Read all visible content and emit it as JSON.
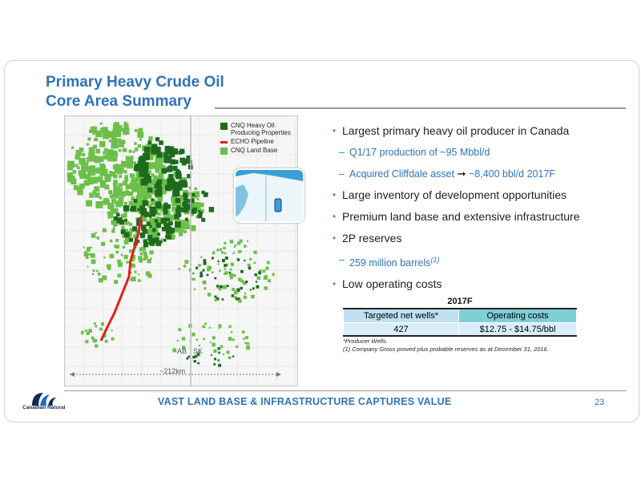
{
  "title": {
    "line1": "Primary Heavy Crude Oil",
    "line2": "Core Area Summary"
  },
  "map": {
    "legend": [
      {
        "label": "CNQ Heavy Oil Producing Properties",
        "color": "#1e6b1e"
      },
      {
        "label": "ECHO Pipeline",
        "color": "#e0201b"
      },
      {
        "label": "CNQ Land Base",
        "color": "#6cc04a"
      }
    ],
    "province_left": "AB",
    "province_right": "SK",
    "scale_label": "~212km"
  },
  "bullets": [
    {
      "level": 1,
      "text": "Largest primary heavy oil producer in Canada"
    },
    {
      "level": 2,
      "text": "Q1/17 production of ~95 Mbbl/d"
    },
    {
      "level": 2,
      "text": "Acquired Cliffdale asset",
      "arrow_target": "~8,400 bbl/d 2017F"
    },
    {
      "level": 1,
      "text": "Large inventory of development opportunities"
    },
    {
      "level": 1,
      "text": "Premium land base and extensive infrastructure"
    },
    {
      "level": 1,
      "text": "2P reserves"
    },
    {
      "level": 2,
      "text": "259 million barrels",
      "superscript": "(1)"
    },
    {
      "level": 1,
      "text": "Low operating costs"
    }
  ],
  "table": {
    "title": "2017F",
    "headers": [
      "Targeted net wells*",
      "Operating costs"
    ],
    "rows": [
      [
        "427",
        "$12.75 - $14.75/bbl"
      ]
    ],
    "colors": {
      "header_left": "#bfe0f2",
      "header_right": "#7fcfd6",
      "row": "#d9eef8"
    }
  },
  "notes": [
    "*Producer Wells.",
    "(1) Company Gross proved plus probable reserves as at December 31, 2016."
  ],
  "footer": "VAST LAND BASE & INFRASTRUCTURE CAPTURES VALUE",
  "page_number": "23",
  "logo": {
    "text": "Canadian Natural"
  },
  "colors": {
    "accent": "#2f74b8",
    "dark_green": "#1e6b1e",
    "light_green": "#6cc04a",
    "pipeline": "#e0201b"
  }
}
